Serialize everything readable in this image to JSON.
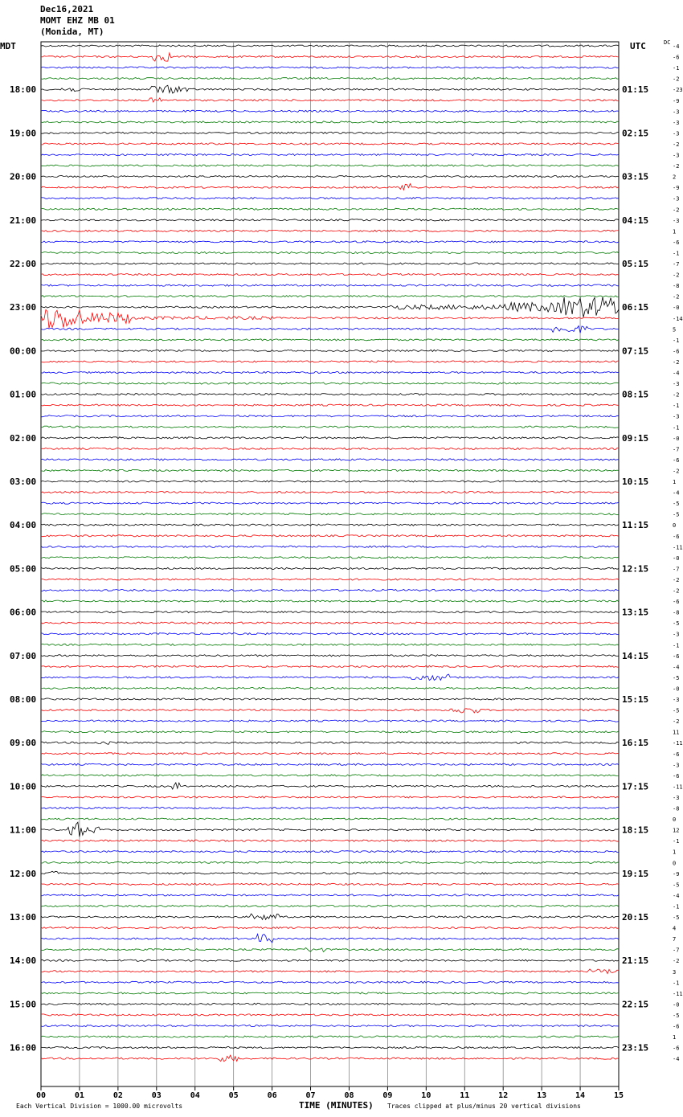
{
  "header": {
    "date": "Dec16,2021",
    "station": "MOMT EHZ MB 01",
    "location": "(Monida, MT)",
    "left_tz": "MDT",
    "right_tz": "UTC",
    "dc_label": "DC"
  },
  "chart_data": {
    "type": "line",
    "title": "",
    "xlabel": "TIME (MINUTES)",
    "xlim": [
      0,
      15
    ],
    "x_ticks": [
      "00",
      "01",
      "02",
      "03",
      "04",
      "05",
      "06",
      "07",
      "08",
      "09",
      "10",
      "11",
      "12",
      "13",
      "14",
      "15"
    ],
    "grid": true,
    "trace_colors": [
      "#000000",
      "#ff0000",
      "#0000ff",
      "#007a00"
    ],
    "left_hour_labels": [
      "18:00",
      "19:00",
      "20:00",
      "21:00",
      "22:00",
      "23:00",
      "00:00",
      "01:00",
      "02:00",
      "03:00",
      "04:00",
      "05:00",
      "06:00",
      "07:00",
      "08:00",
      "09:00",
      "10:00",
      "11:00",
      "12:00",
      "13:00",
      "14:00",
      "15:00",
      "16:00"
    ],
    "right_hour_labels": [
      "01:15",
      "02:15",
      "03:15",
      "04:15",
      "05:15",
      "06:15",
      "07:15",
      "08:15",
      "09:15",
      "10:15",
      "11:15",
      "12:15",
      "13:15",
      "14:15",
      "15:15",
      "16:15",
      "17:15",
      "18:15",
      "19:15",
      "20:15",
      "21:15",
      "22:15",
      "23:15"
    ],
    "dc_offsets": [
      "-4",
      "-6",
      "-1",
      "-2",
      "-23",
      "-9",
      "-3",
      "-3",
      "-3",
      "-2",
      "-3",
      "-2",
      "2",
      "-9",
      "-3",
      "-2",
      "-3",
      "1",
      "-6",
      "-1",
      "-7",
      "-2",
      "-8",
      "-2",
      "-0",
      "-14",
      "5",
      "-1",
      "-6",
      "-2",
      "-4",
      "-3",
      "-2",
      "-1",
      "-3",
      "-1",
      "-0",
      "-7",
      "-6",
      "-2",
      "1",
      "-4",
      "-5",
      "-5",
      "0",
      "-6",
      "-11",
      "-0",
      "-7",
      "-2",
      "-2",
      "-6",
      "-8",
      "-5",
      "-3",
      "-1",
      "-6",
      "-4",
      "-5",
      "-0",
      "-3",
      "-5",
      "-2",
      "11",
      "-11",
      "-6",
      "-3",
      "-6",
      "-11",
      "-3",
      "-8",
      "0",
      "12",
      "-1",
      "1",
      "0",
      "-9",
      "-5",
      "-4",
      "-1",
      "-5",
      "4",
      "7",
      "-7",
      "-2",
      "3",
      "-1",
      "-11",
      "-0",
      "-5",
      "-6",
      "1",
      "-6",
      "-4"
    ],
    "footer_left": "Each Vertical Division = 1000.00 microvolts",
    "footer_right": "Traces clipped at plus/minus 20 vertical divisions"
  }
}
